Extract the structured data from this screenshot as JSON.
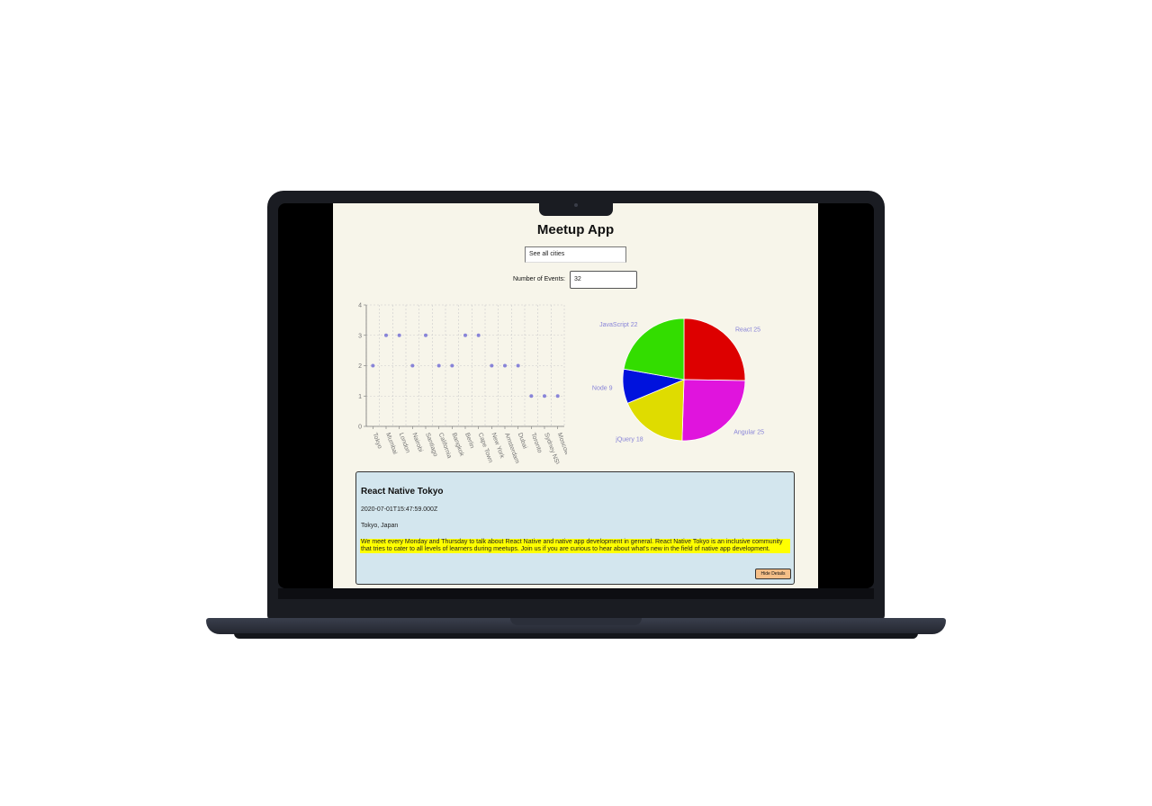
{
  "app": {
    "title": "Meetup App"
  },
  "search": {
    "value": "See all cities"
  },
  "events": {
    "label": "Number of Events:",
    "value": "32"
  },
  "chart_data": [
    {
      "type": "scatter",
      "x_categories": [
        "Tokyo",
        "Mumbai",
        "London",
        "Nairobi",
        "Santiago",
        "California",
        "Bangkok",
        "Berlin",
        "Cape Town",
        "New York",
        "Amsterdam",
        "Dubai",
        "Toronto",
        "Sydney NSW",
        "Moscow"
      ],
      "y": [
        2,
        3,
        3,
        2,
        3,
        2,
        2,
        3,
        3,
        2,
        2,
        2,
        1,
        1,
        1
      ],
      "ylim": [
        0,
        4
      ],
      "y_ticks": [
        0,
        1,
        2,
        3,
        4
      ],
      "grid": true
    },
    {
      "type": "pie",
      "slices": [
        {
          "label": "React",
          "value": 25,
          "color": "#dd0000"
        },
        {
          "label": "Angular",
          "value": 25,
          "color": "#e014dd"
        },
        {
          "label": "jQuery",
          "value": 18,
          "color": "#dfdc00"
        },
        {
          "label": "Node",
          "value": 9,
          "color": "#0012dd"
        },
        {
          "label": "JavaScript",
          "value": 22,
          "color": "#33dd00"
        }
      ],
      "label_color": "#8884d8"
    }
  ],
  "event_details": {
    "title": "React Native Tokyo",
    "date": "2020-07-01T15:47:59.000Z",
    "location": "Tokyo, Japan",
    "description": "We meet every Monday and Thursday to talk about React Native and native app development in general. React Native Tokyo is an inclusive community that tries to cater to all levels of learners during meetups. Join us if you are curious to hear about what's new in the field of native app development.",
    "button_label": "Hide Details"
  },
  "colors": {
    "dot": "#8884d8",
    "page_bg": "#f7f5ea",
    "details_bg": "#d3e6ee",
    "highlight": "#ffff00",
    "button_bg": "#f5bf88"
  }
}
